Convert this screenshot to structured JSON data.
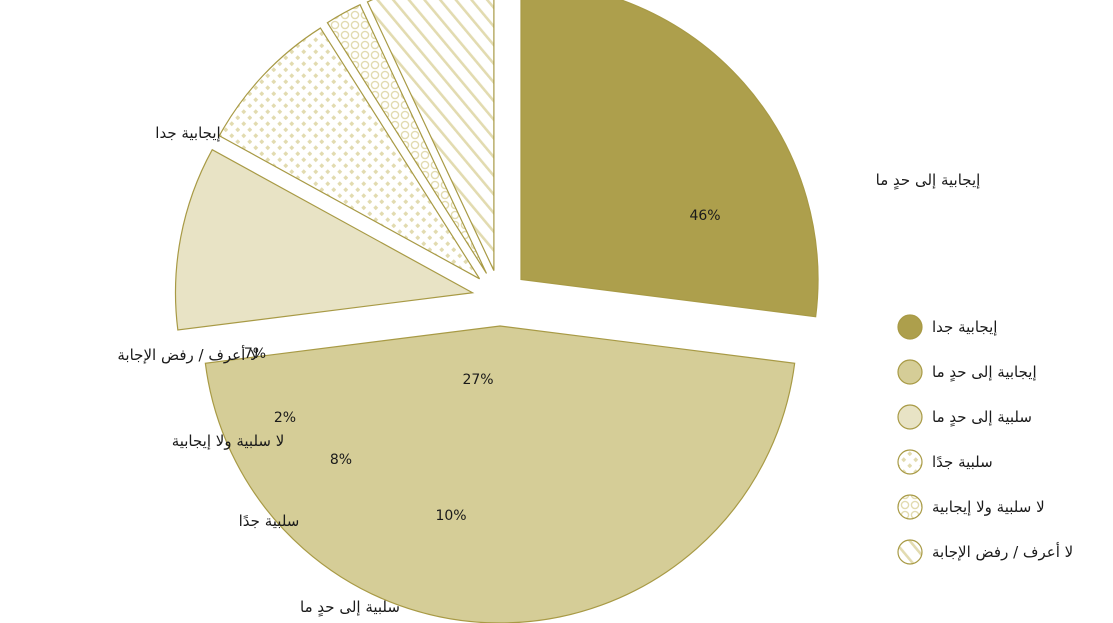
{
  "chart_data": {
    "type": "pie",
    "slices": [
      {
        "label": "إيجابية جدا",
        "value": 27,
        "display": "27%",
        "color": "#ad9f4c",
        "pattern": "solid"
      },
      {
        "label": "إيجابية إلى حدٍ ما",
        "value": 46,
        "display": "46%",
        "color": "#d5cd97",
        "pattern": "solid"
      },
      {
        "label": "سلبية إلى حدٍ ما",
        "value": 10,
        "display": "10%",
        "color": "#e8e3c5",
        "pattern": "solid"
      },
      {
        "label": "سلبية جدًا",
        "value": 8,
        "display": "8%",
        "color": "#e2dbb0",
        "pattern": "dots"
      },
      {
        "label": "لا سلبية ولا إيجابية",
        "value": 2,
        "display": "2%",
        "color": "#e2dbb0",
        "pattern": "circles"
      },
      {
        "label": "لا أعرف / رفض الإجابة",
        "value": 7,
        "display": "7%",
        "color": "#e2dbb0",
        "pattern": "stripes"
      }
    ],
    "legend": [
      {
        "label": "إيجابية جدا",
        "pattern": "solid",
        "color": "#ad9f4c"
      },
      {
        "label": "إيجابية إلى حدٍ ما",
        "pattern": "solid",
        "color": "#d5cd97"
      },
      {
        "label": "سلبية إلى حدٍ ما",
        "pattern": "solid",
        "color": "#e8e3c5"
      },
      {
        "label": "سلبية جدًا",
        "pattern": "dots",
        "color": "#e2dbb0"
      },
      {
        "label": "لا سلبية ولا إيجابية",
        "pattern": "circles",
        "color": "#e2dbb0"
      },
      {
        "label": "لا أعرف / رفض الإجابة",
        "pattern": "stripes",
        "color": "#e2dbb0"
      }
    ],
    "legend_position": "right",
    "outline_color": "#a89a45"
  }
}
